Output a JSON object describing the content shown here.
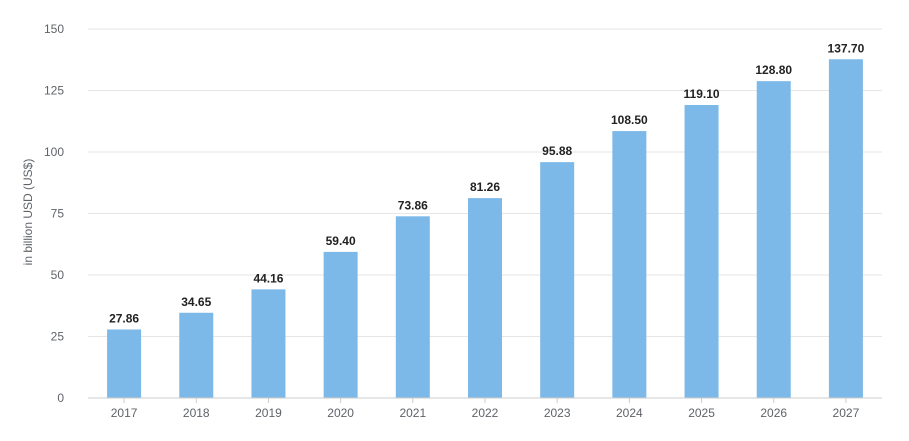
{
  "chart_data": {
    "type": "bar",
    "categories": [
      "2017",
      "2018",
      "2019",
      "2020",
      "2021",
      "2022",
      "2023",
      "2024",
      "2025",
      "2026",
      "2027"
    ],
    "values": [
      27.86,
      34.65,
      44.16,
      59.4,
      73.86,
      81.26,
      95.88,
      108.5,
      119.1,
      128.8,
      137.7
    ],
    "value_labels": [
      "27.86",
      "34.65",
      "44.16",
      "59.40",
      "73.86",
      "81.26",
      "95.88",
      "108.50",
      "119.10",
      "128.80",
      "137.70"
    ],
    "ylabel": "in billion USD (US$)",
    "ylim": [
      0,
      150
    ],
    "yticks": [
      0,
      25,
      50,
      75,
      100,
      125,
      150
    ],
    "grid": true,
    "colors": {
      "bar": "#7db9e8",
      "grid": "#e6e6e6",
      "axis": "#cccccc"
    }
  }
}
